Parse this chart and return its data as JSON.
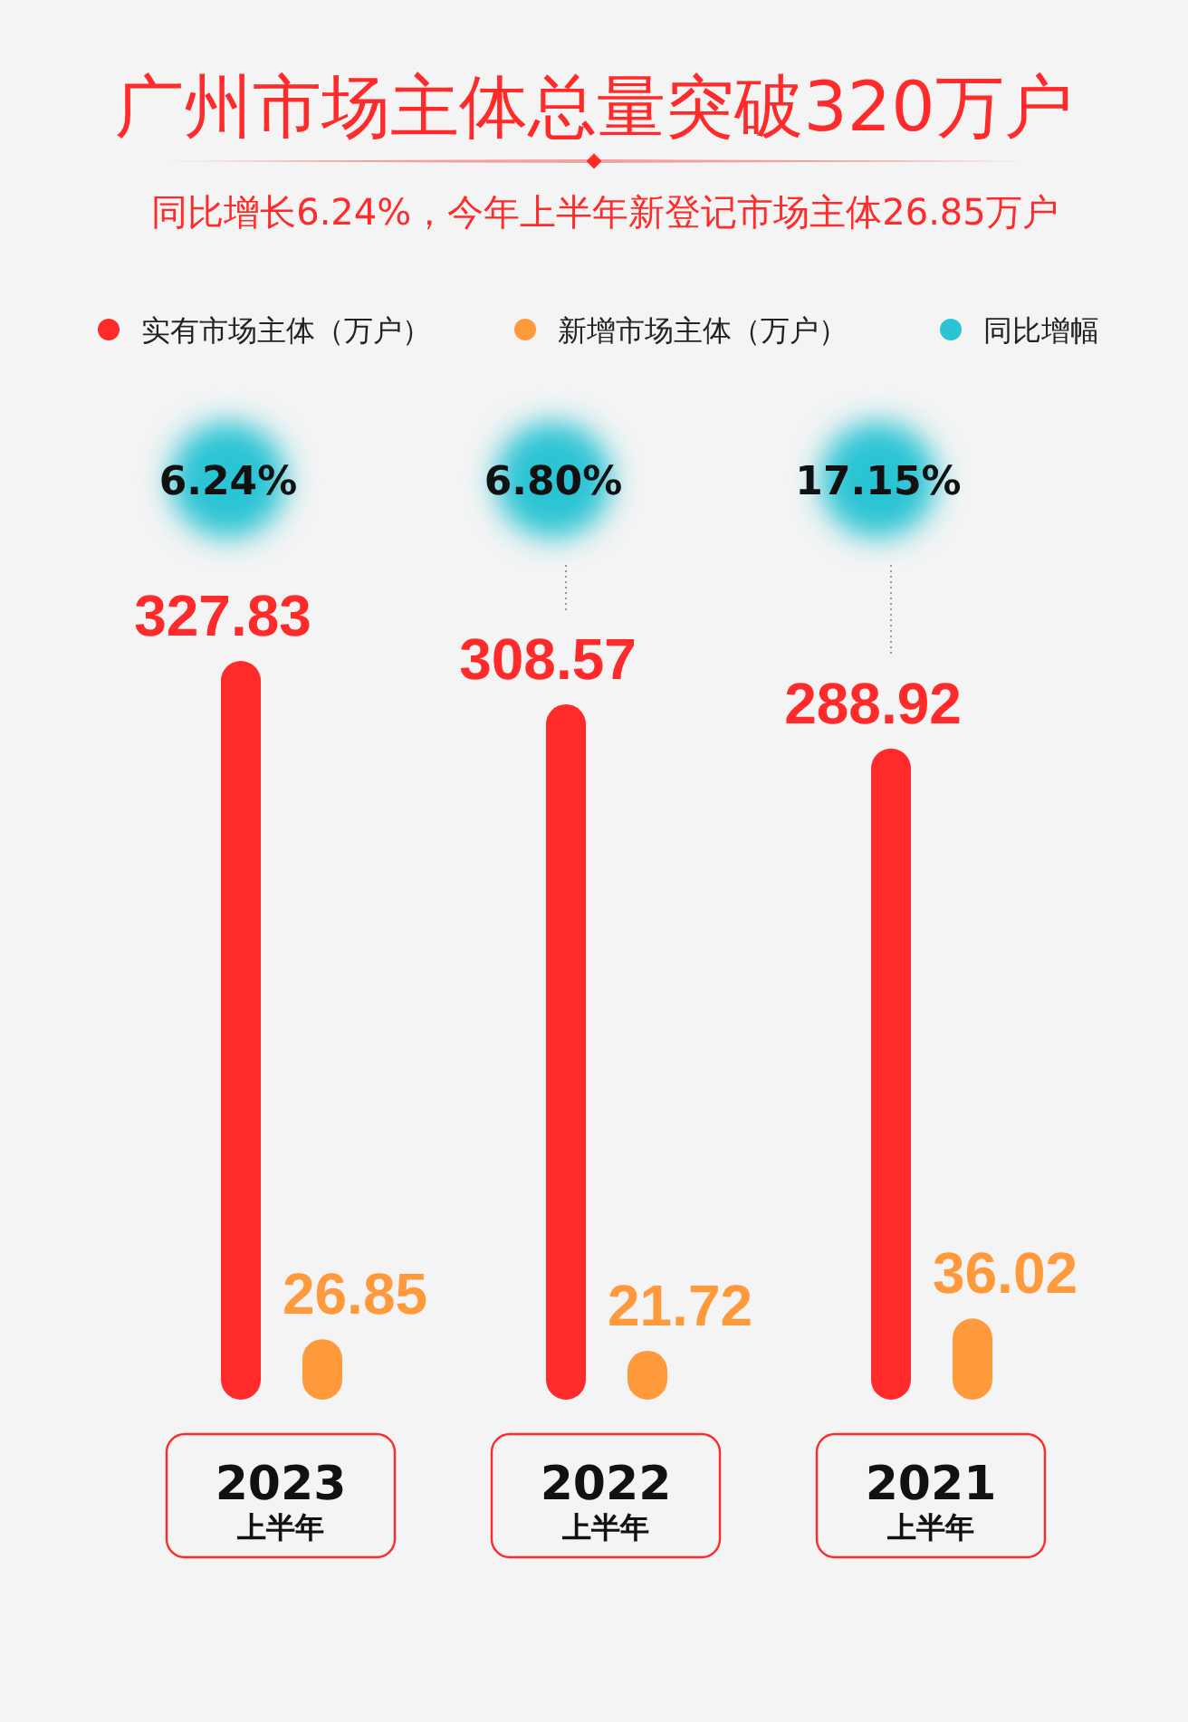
{
  "chart_data": {
    "type": "bar",
    "title": "广州市场主体总量突破320万户",
    "subtitle": "同比增长6.24%，今年上半年新登记市场主体26.85万户",
    "categories": [
      "2023 上半年",
      "2022 上半年",
      "2021 上半年"
    ],
    "series": [
      {
        "name": "实有市场主体（万户）",
        "color": "#ff2a2a",
        "values": [
          327.83,
          308.57,
          288.92
        ]
      },
      {
        "name": "新增市场主体（万户）",
        "color": "#ff9a3c",
        "values": [
          26.85,
          21.72,
          36.02
        ]
      }
    ],
    "annotations": [
      "同比增幅",
      "6.24%",
      "6.80%",
      "17.15%"
    ],
    "data_labels": true,
    "legend": "top"
  }
}
